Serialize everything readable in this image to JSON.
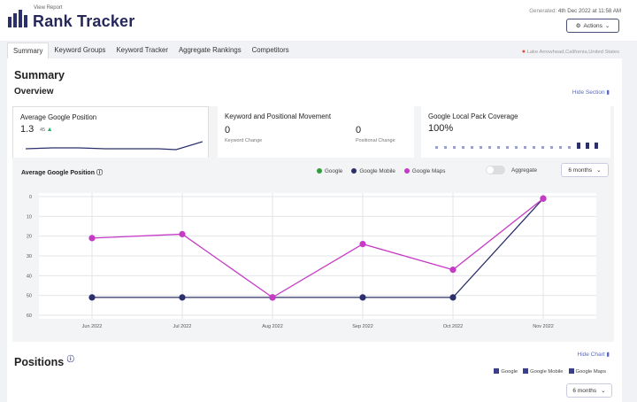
{
  "header": {
    "view_report": "View Report",
    "title": "Rank Tracker",
    "generated_label": "Generated:",
    "generated_value": "4th Dec 2022 at 11:58 AM",
    "actions_label": "Actions"
  },
  "tabs": [
    {
      "label": "Summary",
      "active": true
    },
    {
      "label": "Keyword Groups"
    },
    {
      "label": "Keyword Tracker"
    },
    {
      "label": "Aggregate Rankings"
    },
    {
      "label": "Competitors"
    }
  ],
  "location": "Lake Arrowhead,California,United States",
  "summary": {
    "heading": "Summary",
    "overview": "Overview",
    "hide_section": "Hide Section"
  },
  "cards": {
    "avg": {
      "title": "Average Google Position",
      "value": "1.3",
      "delta": "45"
    },
    "movement": {
      "title": "Keyword and Positional Movement",
      "keyword_value": "0",
      "keyword_label": "Keyword Change",
      "positional_value": "0",
      "positional_label": "Positional Change"
    },
    "local": {
      "title": "Google Local Pack Coverage",
      "value": "100%"
    }
  },
  "chart_section": {
    "title": "Average Google Position",
    "aggregate_label": "Aggregate",
    "range_label": "6 months"
  },
  "colors": {
    "google": "#2e9e3e",
    "google_mobile": "#2b2f6b",
    "google_maps": "#c63bc6"
  },
  "chart_data": {
    "type": "line",
    "title": "Average Google Position",
    "categories": [
      "Jun 2022",
      "Jul 2022",
      "Aug 2022",
      "Sep 2022",
      "Oct 2022",
      "Nov 2022"
    ],
    "yticks": [
      0,
      10,
      20,
      30,
      40,
      50,
      60
    ],
    "ylim": [
      0,
      60
    ],
    "y_inverted": true,
    "grid": true,
    "legend_position": "top-right",
    "series": [
      {
        "name": "Google",
        "values": [
          null,
          null,
          null,
          null,
          null,
          null
        ]
      },
      {
        "name": "Google Mobile",
        "values": [
          51,
          51,
          51,
          51,
          51,
          1
        ]
      },
      {
        "name": "Google Maps",
        "values": [
          21,
          19,
          51,
          24,
          37,
          1
        ]
      }
    ]
  },
  "positions": {
    "heading": "Positions",
    "hide_chart": "Hide Chart",
    "checks": [
      "Google",
      "Google Mobile",
      "Google Maps"
    ],
    "range_label": "6 months"
  }
}
